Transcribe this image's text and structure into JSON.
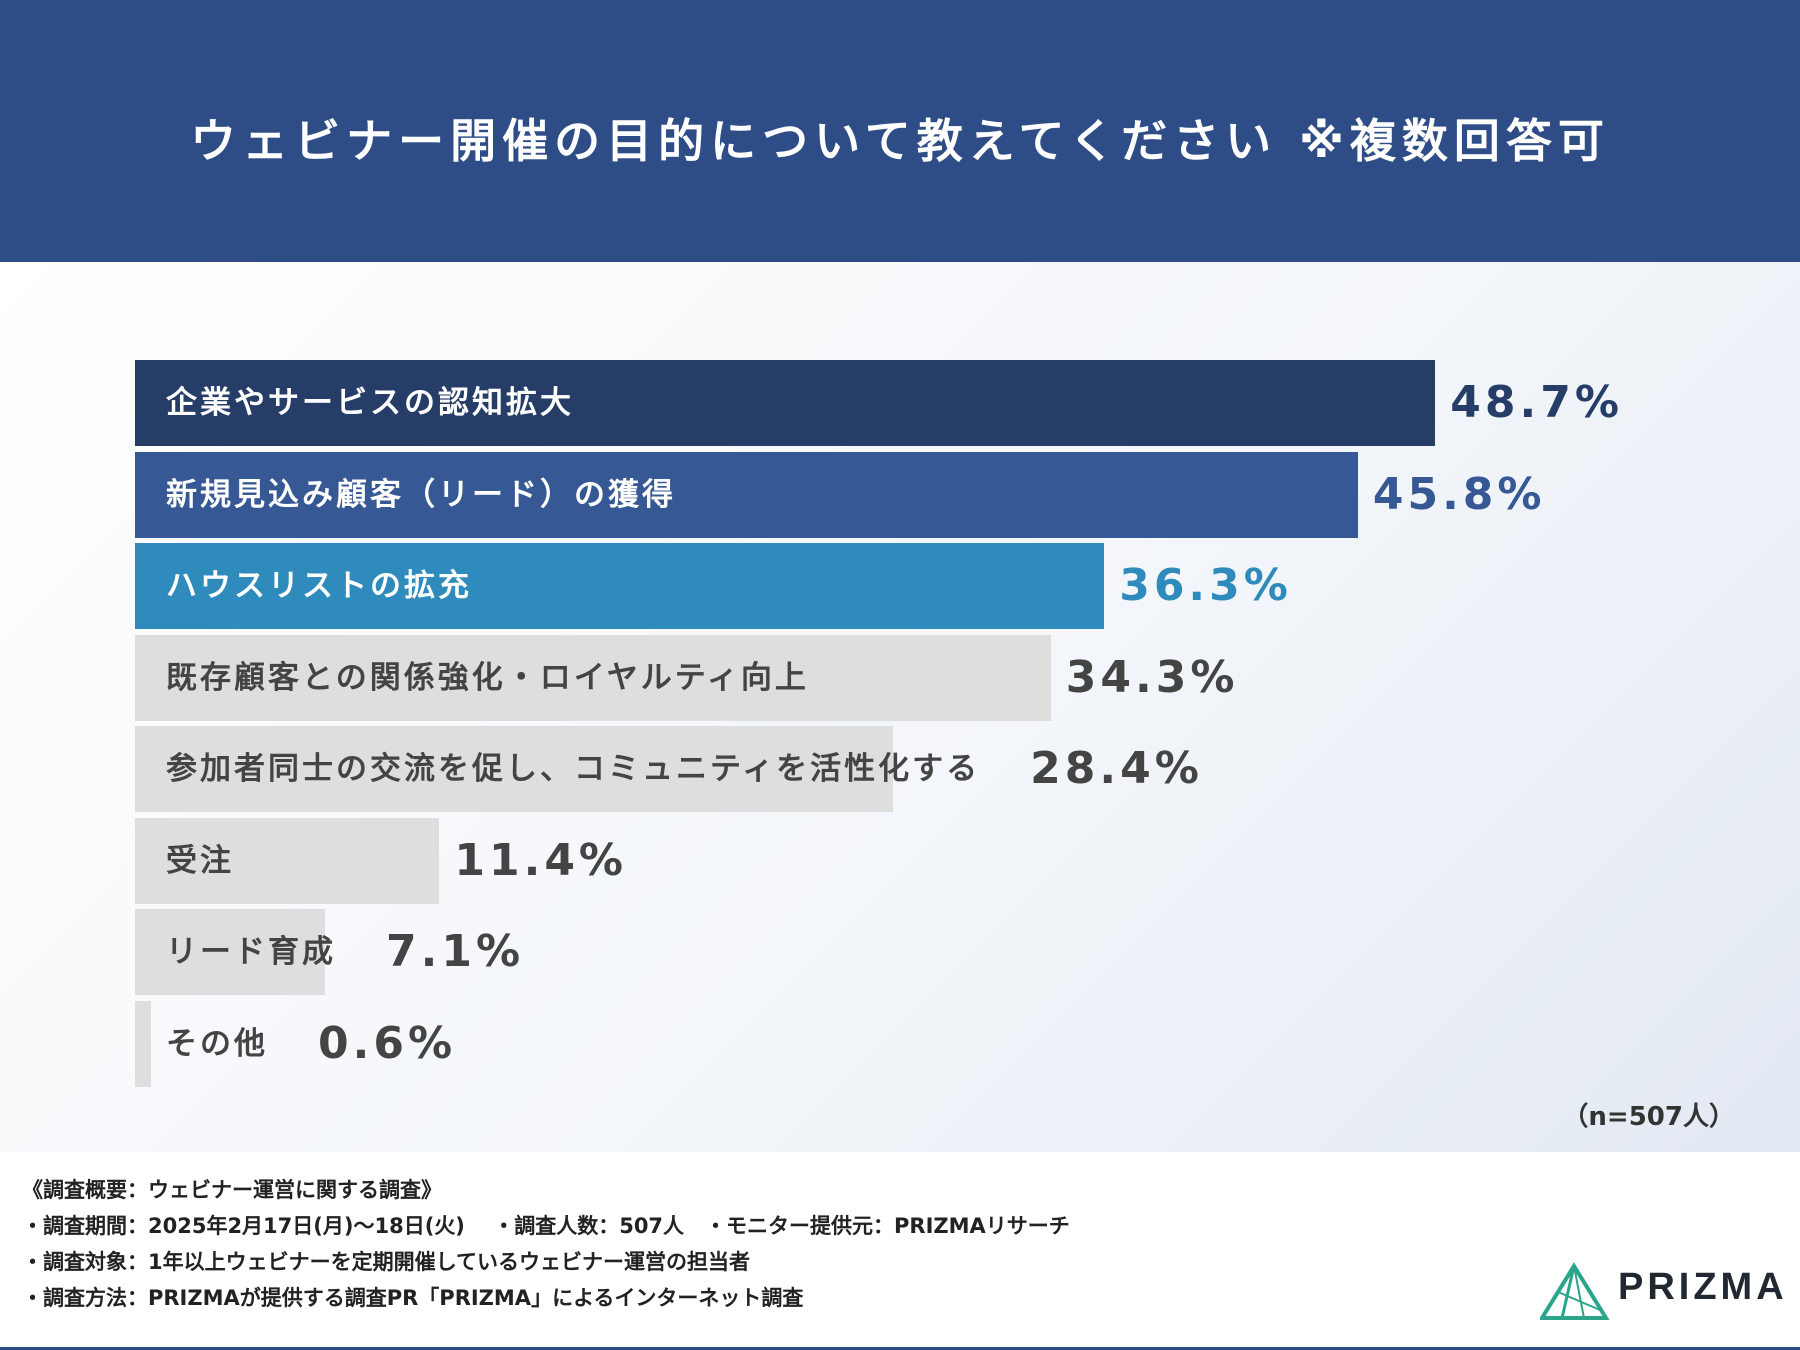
{
  "chart_data": {
    "type": "bar",
    "orientation": "horizontal",
    "title": "ウェビナー開催の目的について教えてください ※複数回答可",
    "categories": [
      "企業やサービスの認知拡大",
      "新規見込み顧客（リード）の獲得",
      "ハウスリストの拡充",
      "既存顧客との関係強化・ロイヤルティ向上",
      "参加者同士の交流を促し、コミュニティを活性化する",
      "受注",
      "リード育成",
      "その他"
    ],
    "values": [
      48.7,
      45.8,
      36.3,
      34.3,
      28.4,
      11.4,
      7.1,
      0.6
    ],
    "value_labels": [
      "48.7%",
      "45.8%",
      "36.3%",
      "34.3%",
      "28.4%",
      "11.4%",
      "7.1%",
      "0.6%"
    ],
    "xlim": [
      0,
      50
    ],
    "unit": "%",
    "bar_colors": [
      "#263d68",
      "#365894",
      "#2e8bbb",
      "#dedede",
      "#dedede",
      "#dedede",
      "#dedede",
      "#dedede"
    ],
    "label_colors": [
      "#ffffff",
      "#ffffff",
      "#ffffff",
      "#444444",
      "#444444",
      "#444444",
      "#444444",
      "#444444"
    ],
    "value_colors": [
      "#263d68",
      "#365894",
      "#2e8bbb",
      "#444444",
      "#444444",
      "#444444",
      "#444444",
      "#444444"
    ],
    "grid": false,
    "legend": "none",
    "note": "（n=507人）"
  },
  "footer": {
    "lines": [
      "《調査概要：ウェビナー運営に関する調査》",
      "・調査期間：2025年2月17日(月)〜18日(火)　 ・調査人数：507人　・モニター提供元：PRIZMAリサーチ",
      "・調査対象：1年以上ウェビナーを定期開催しているウェビナー運営の担当者",
      "・調査方法：PRIZMAが提供する調査PR「PRIZMA」によるインターネット調査"
    ]
  },
  "logo": {
    "text": "PRIZMA",
    "color": "#2aa58a"
  }
}
